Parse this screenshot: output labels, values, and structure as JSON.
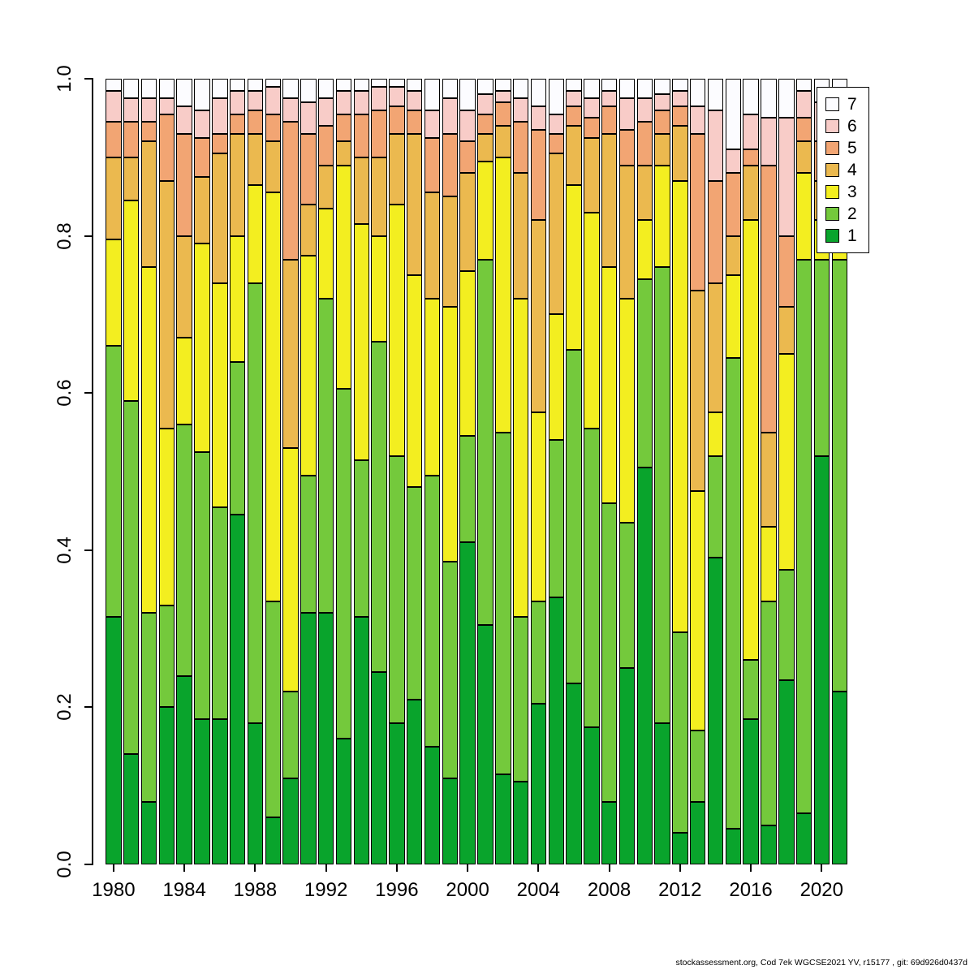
{
  "page": {
    "background": "#ffffff"
  },
  "chart_data": {
    "type": "bar",
    "stacked": true,
    "normalized": true,
    "title": "",
    "xlabel": "",
    "ylabel": "",
    "ylim": [
      0,
      1
    ],
    "grid": false,
    "years": [
      1980,
      1981,
      1982,
      1983,
      1984,
      1985,
      1986,
      1987,
      1988,
      1989,
      1990,
      1991,
      1992,
      1993,
      1994,
      1995,
      1996,
      1997,
      1998,
      1999,
      2000,
      2001,
      2002,
      2003,
      2004,
      2005,
      2006,
      2007,
      2008,
      2009,
      2010,
      2011,
      2012,
      2013,
      2014,
      2015,
      2016,
      2017,
      2018,
      2019,
      2020,
      2021
    ],
    "x_tick_years": [
      1980,
      1984,
      1988,
      1992,
      1996,
      2000,
      2004,
      2008,
      2012,
      2016,
      2020
    ],
    "x_tick_labels": [
      "1980",
      "1984",
      "1988",
      "1992",
      "1996",
      "2000",
      "2004",
      "2008",
      "2012",
      "2016",
      "2020"
    ],
    "y_tick_values": [
      0,
      0.2,
      0.4,
      0.6,
      0.8,
      1.0
    ],
    "y_tick_labels": [
      "0.0",
      "0.2",
      "0.4",
      "0.6",
      "0.8",
      "1.0"
    ],
    "series": [
      {
        "name": "1",
        "color": "#09a42c",
        "values": [
          0.315,
          0.14,
          0.08,
          0.2,
          0.24,
          0.185,
          0.185,
          0.445,
          0.18,
          0.06,
          0.11,
          0.32,
          0.32,
          0.16,
          0.315,
          0.245,
          0.18,
          0.21,
          0.15,
          0.11,
          0.41,
          0.305,
          0.115,
          0.105,
          0.205,
          0.34,
          0.23,
          0.175,
          0.08,
          0.25,
          0.505,
          0.18,
          0.04,
          0.08,
          0.39,
          0.045,
          0.185,
          0.05,
          0.235,
          0.065,
          0.52,
          0.22
        ]
      },
      {
        "name": "2",
        "color": "#74c93c",
        "values": [
          0.345,
          0.45,
          0.24,
          0.13,
          0.32,
          0.34,
          0.27,
          0.195,
          0.56,
          0.275,
          0.11,
          0.175,
          0.4,
          0.445,
          0.2,
          0.42,
          0.34,
          0.27,
          0.345,
          0.275,
          0.135,
          0.465,
          0.435,
          0.21,
          0.13,
          0.2,
          0.425,
          0.38,
          0.38,
          0.185,
          0.24,
          0.58,
          0.255,
          0.09,
          0.13,
          0.6,
          0.075,
          0.285,
          0.14,
          0.705,
          0.25,
          0.55
        ]
      },
      {
        "name": "3",
        "color": "#f3ee20",
        "values": [
          0.135,
          0.255,
          0.44,
          0.225,
          0.11,
          0.265,
          0.285,
          0.16,
          0.125,
          0.52,
          0.31,
          0.28,
          0.115,
          0.285,
          0.3,
          0.135,
          0.32,
          0.27,
          0.225,
          0.325,
          0.21,
          0.125,
          0.35,
          0.405,
          0.24,
          0.16,
          0.21,
          0.275,
          0.3,
          0.285,
          0.075,
          0.13,
          0.575,
          0.305,
          0.055,
          0.105,
          0.56,
          0.095,
          0.275,
          0.11,
          0.05,
          0.11
        ]
      },
      {
        "name": "4",
        "color": "#ebb94f",
        "values": [
          0.105,
          0.055,
          0.16,
          0.315,
          0.13,
          0.085,
          0.165,
          0.13,
          0.065,
          0.065,
          0.24,
          0.065,
          0.055,
          0.03,
          0.085,
          0.1,
          0.09,
          0.18,
          0.135,
          0.14,
          0.125,
          0.035,
          0.04,
          0.16,
          0.245,
          0.205,
          0.075,
          0.095,
          0.17,
          0.17,
          0.07,
          0.04,
          0.07,
          0.255,
          0.165,
          0.05,
          0.07,
          0.12,
          0.06,
          0.04,
          0.05,
          0.04
        ]
      },
      {
        "name": "5",
        "color": "#f2a573",
        "values": [
          0.045,
          0.045,
          0.025,
          0.085,
          0.13,
          0.05,
          0.025,
          0.025,
          0.03,
          0.035,
          0.175,
          0.09,
          0.05,
          0.035,
          0.055,
          0.06,
          0.035,
          0.03,
          0.07,
          0.08,
          0.04,
          0.025,
          0.03,
          0.065,
          0.115,
          0.025,
          0.025,
          0.025,
          0.035,
          0.045,
          0.055,
          0.03,
          0.025,
          0.2,
          0.13,
          0.08,
          0.02,
          0.34,
          0.09,
          0.03,
          0.05,
          0.03
        ]
      },
      {
        "name": "6",
        "color": "#f8ccc8",
        "values": [
          0.04,
          0.03,
          0.03,
          0.02,
          0.035,
          0.035,
          0.045,
          0.03,
          0.025,
          0.035,
          0.03,
          0.04,
          0.035,
          0.03,
          0.03,
          0.03,
          0.025,
          0.025,
          0.035,
          0.045,
          0.04,
          0.025,
          0.015,
          0.03,
          0.03,
          0.025,
          0.02,
          0.025,
          0.02,
          0.04,
          0.03,
          0.02,
          0.02,
          0.035,
          0.09,
          0.03,
          0.045,
          0.06,
          0.15,
          0.035,
          0.05,
          0.03
        ]
      },
      {
        "name": "7",
        "color": "#fcfcff",
        "values": [
          0.015,
          0.025,
          0.025,
          0.025,
          0.035,
          0.04,
          0.025,
          0.015,
          0.015,
          0.01,
          0.025,
          0.03,
          0.025,
          0.015,
          0.015,
          0.01,
          0.01,
          0.015,
          0.04,
          0.025,
          0.04,
          0.02,
          0.015,
          0.025,
          0.035,
          0.045,
          0.015,
          0.025,
          0.015,
          0.025,
          0.025,
          0.02,
          0.015,
          0.035,
          0.04,
          0.09,
          0.045,
          0.05,
          0.05,
          0.015,
          0.03,
          0.02
        ]
      }
    ],
    "legend": {
      "position": "topright",
      "labels": [
        "7",
        "6",
        "5",
        "4",
        "3",
        "2",
        "1"
      ]
    },
    "footer": "stockassessment.org, Cod 7ek WGCSE2021 YV, r15177 , git: 69d926d0437d"
  }
}
